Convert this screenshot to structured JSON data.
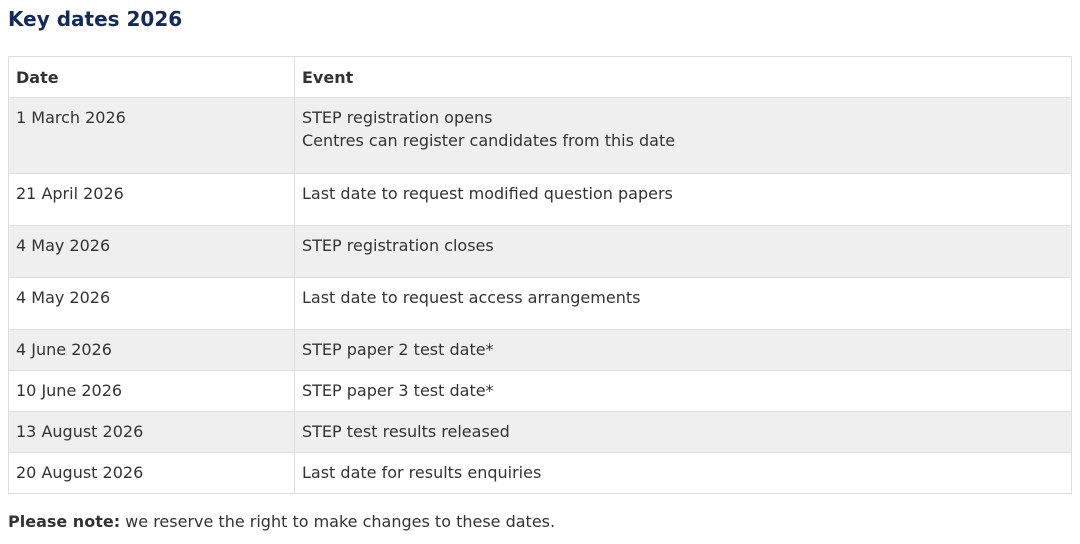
{
  "title": "Key dates 2026",
  "table": {
    "headers": [
      "Date",
      "Event"
    ],
    "rows": [
      {
        "date": "1 March 2026",
        "event": "STEP registration opens",
        "detail": "Centres can register candidates from this date"
      },
      {
        "date": "21 April 2026",
        "event": "Last date to request modified question papers"
      },
      {
        "date": "4 May 2026",
        "event": "STEP registration closes"
      },
      {
        "date": "4 May 2026",
        "event": "Last date to request access arrangements"
      },
      {
        "date": "4 June 2026",
        "event": "STEP paper 2 test date*"
      },
      {
        "date": "10 June 2026",
        "event": "STEP paper 3 test date*"
      },
      {
        "date": "13 August 2026",
        "event": "STEP test results released"
      },
      {
        "date": "20 August 2026",
        "event": "Last date for results enquiries"
      }
    ]
  },
  "note": {
    "label": "Please note:",
    "text": " we reserve the right to make changes to these dates."
  },
  "colors": {
    "title": "#14295c",
    "stripe": "#efefef"
  }
}
